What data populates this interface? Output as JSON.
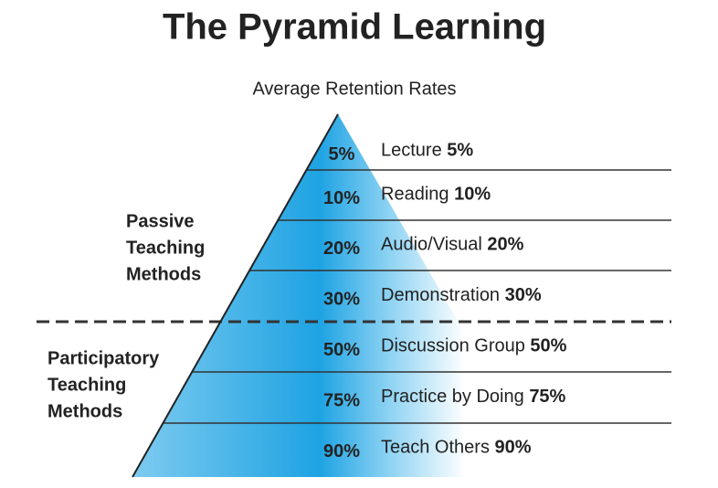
{
  "title": "The Pyramid Learning",
  "subtitle": "Average Retention Rates",
  "groups": [
    {
      "lines": [
        "Passive",
        "Teaching",
        "Methods"
      ]
    },
    {
      "lines": [
        "Participatory",
        "Teaching",
        "Methods"
      ]
    }
  ],
  "levels": [
    {
      "percent": "5%",
      "name": "Lecture",
      "rate": "5%"
    },
    {
      "percent": "10%",
      "name": "Reading",
      "rate": "10%"
    },
    {
      "percent": "20%",
      "name": "Audio/Visual",
      "rate": "20%"
    },
    {
      "percent": "30%",
      "name": "Demonstration",
      "rate": "30%"
    },
    {
      "percent": "50%",
      "name": "Discussion Group",
      "rate": "50%"
    },
    {
      "percent": "75%",
      "name": "Practice by Doing",
      "rate": "75%"
    },
    {
      "percent": "90%",
      "name": "Teach Others",
      "rate": "90%"
    }
  ]
}
